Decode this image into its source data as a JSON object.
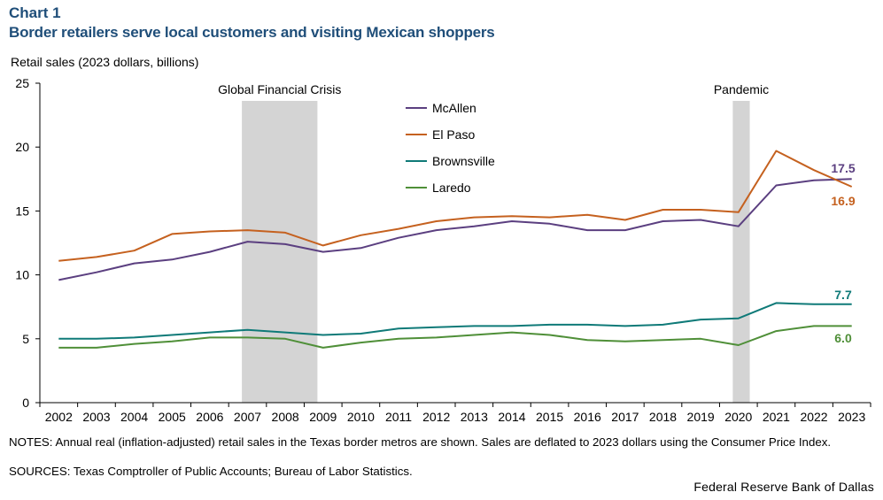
{
  "chart_data": {
    "type": "line",
    "label": "Chart 1",
    "title": "Border retailers serve local customers and visiting Mexican shoppers",
    "ylabel": "Retail sales (2023 dollars, billions)",
    "xlabel": "",
    "ylim": [
      0,
      25
    ],
    "yticks": [
      "0",
      "5",
      "10",
      "15",
      "20",
      "25"
    ],
    "x": [
      "2002",
      "2003",
      "2004",
      "2005",
      "2006",
      "2007",
      "2008",
      "2009",
      "2010",
      "2011",
      "2012",
      "2013",
      "2014",
      "2015",
      "2016",
      "2017",
      "2018",
      "2019",
      "2020",
      "2021",
      "2022",
      "2023"
    ],
    "shaded_regions": [
      {
        "label": "Global Financial Crisis",
        "from": 2007,
        "to": 2009
      },
      {
        "label": "Pandemic",
        "from": 2020,
        "to": 2020
      }
    ],
    "series": [
      {
        "name": "McAllen",
        "color": "#5b3f80",
        "end_label": "17.5",
        "values": [
          9.6,
          10.2,
          10.9,
          11.2,
          11.8,
          12.6,
          12.4,
          11.8,
          12.1,
          12.9,
          13.5,
          13.8,
          14.2,
          14.0,
          13.5,
          13.5,
          14.2,
          14.3,
          13.8,
          17.0,
          17.4,
          17.5
        ]
      },
      {
        "name": "El Paso",
        "color": "#c5611f",
        "end_label": "16.9",
        "values": [
          11.1,
          11.4,
          11.9,
          13.2,
          13.4,
          13.5,
          13.3,
          12.3,
          13.1,
          13.6,
          14.2,
          14.5,
          14.6,
          14.5,
          14.7,
          14.3,
          15.1,
          15.1,
          14.9,
          19.7,
          18.2,
          16.9
        ]
      },
      {
        "name": "Brownsville",
        "color": "#0f7a78",
        "end_label": "7.7",
        "values": [
          5.0,
          5.0,
          5.1,
          5.3,
          5.5,
          5.7,
          5.5,
          5.3,
          5.4,
          5.8,
          5.9,
          6.0,
          6.0,
          6.1,
          6.1,
          6.0,
          6.1,
          6.5,
          6.6,
          7.8,
          7.7,
          7.7
        ]
      },
      {
        "name": "Laredo",
        "color": "#4f8f38",
        "end_label": "6.0",
        "values": [
          4.3,
          4.3,
          4.6,
          4.8,
          5.1,
          5.1,
          5.0,
          4.3,
          4.7,
          5.0,
          5.1,
          5.3,
          5.5,
          5.3,
          4.9,
          4.8,
          4.9,
          5.0,
          4.5,
          5.6,
          6.0,
          6.0
        ]
      }
    ]
  },
  "notes": "NOTES: Annual real (inflation-adjusted) retail sales in the Texas border metros are shown. Sales are deflated to 2023 dollars using the Consumer Price Index.",
  "sources": "SOURCES: Texas Comptroller of Public Accounts; Bureau of Labor Statistics.",
  "credit": "Federal Reserve Bank of Dallas"
}
